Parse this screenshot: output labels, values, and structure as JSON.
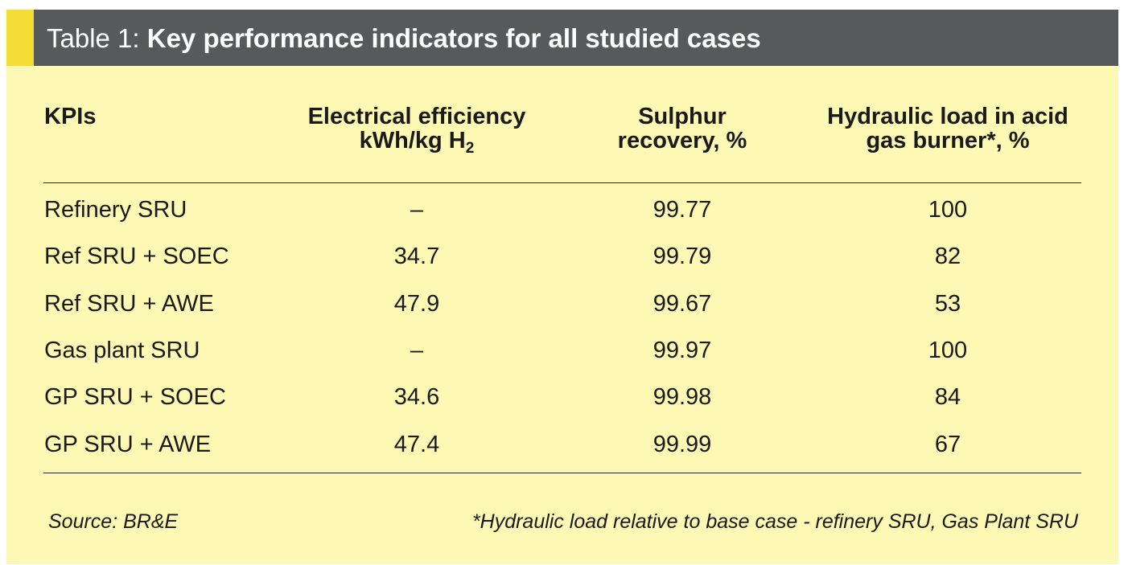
{
  "title": {
    "prefix": "Table 1: ",
    "main": "Key performance indicators for all studied cases"
  },
  "table": {
    "headers": {
      "kpi": "KPIs",
      "efficiency_line1": "Electrical efficiency",
      "efficiency_line2": "kWh/kg H",
      "efficiency_sub": "2",
      "sulphur_line1": "Sulphur",
      "sulphur_line2": "recovery, %",
      "hydraulic_line1": "Hydraulic load in acid",
      "hydraulic_line2": "gas burner*, %"
    },
    "rows": [
      {
        "kpi": "Refinery SRU",
        "efficiency": "–",
        "sulphur": "99.77",
        "hydraulic": "100"
      },
      {
        "kpi": "Ref SRU + SOEC",
        "efficiency": "34.7",
        "sulphur": "99.79",
        "hydraulic": "82"
      },
      {
        "kpi": "Ref SRU + AWE",
        "efficiency": "47.9",
        "sulphur": "99.67",
        "hydraulic": "53"
      },
      {
        "kpi": "Gas plant SRU",
        "efficiency": "–",
        "sulphur": "99.97",
        "hydraulic": "100"
      },
      {
        "kpi": "GP SRU + SOEC",
        "efficiency": "34.6",
        "sulphur": "99.98",
        "hydraulic": "84"
      },
      {
        "kpi": "GP SRU + AWE",
        "efficiency": "47.4",
        "sulphur": "99.99",
        "hydraulic": "67"
      }
    ]
  },
  "footer": {
    "source": "Source: BR&E",
    "note": "*Hydraulic load relative to base case - refinery SRU, Gas Plant SRU"
  },
  "colors": {
    "panel_background": "#fef8b5",
    "title_bar": "#58595b",
    "title_accent": "#f6dd36",
    "text": "#1a1a1a"
  }
}
